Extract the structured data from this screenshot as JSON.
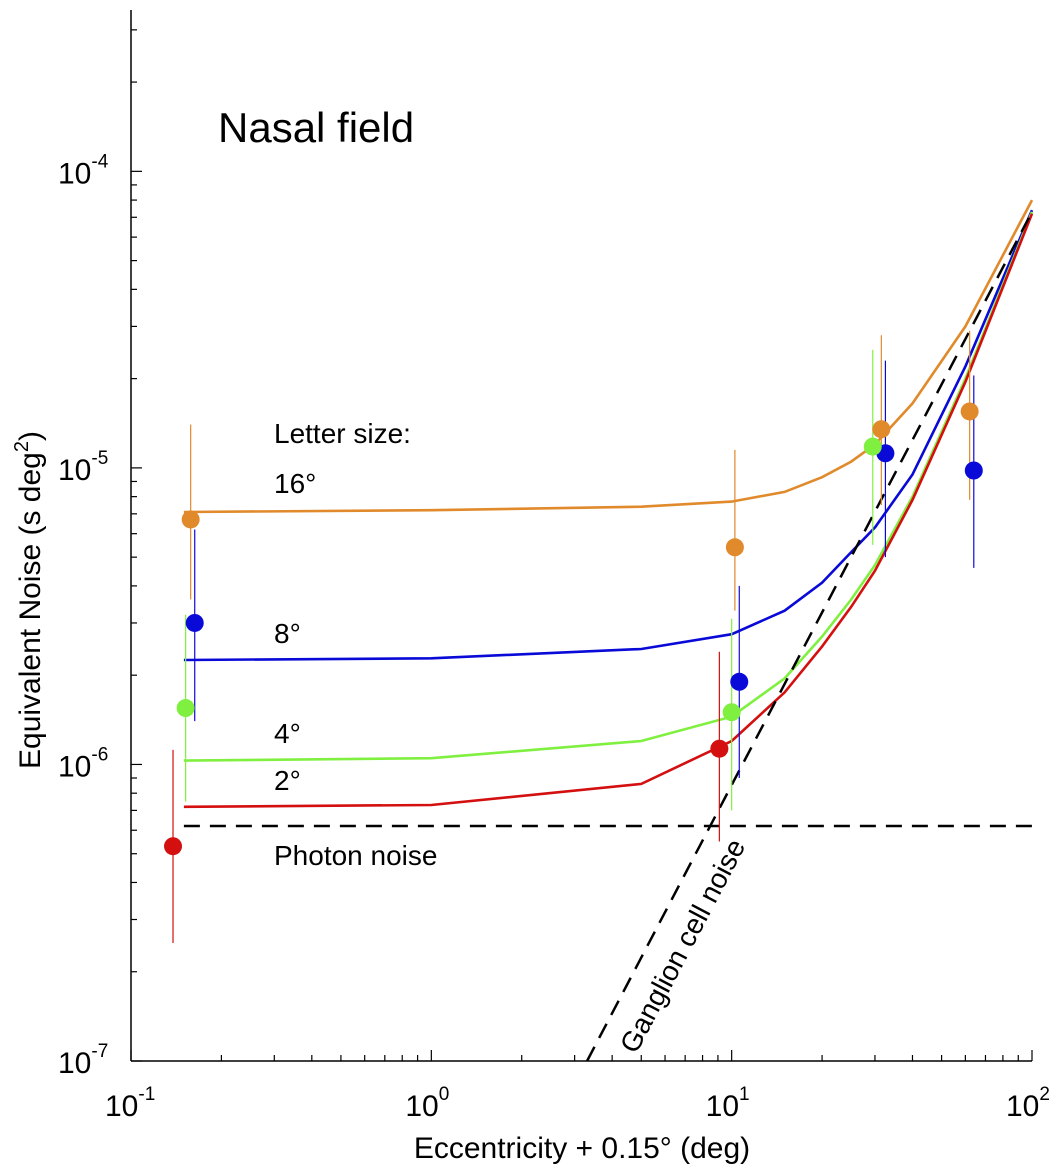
{
  "chart_data": {
    "type": "line",
    "title": "Nasal field",
    "xlabel": "Eccentricity + 0.15° (deg)",
    "ylabel_main": "Equivalent Noise (s deg",
    "ylabel_sup": "2",
    "ylabel_close": ")",
    "x_scale": "log",
    "y_scale": "log",
    "xlim": [
      0.1,
      100
    ],
    "ylim": [
      1e-07,
      0.00035
    ],
    "x_ticks": [
      {
        "value": 0.1,
        "base": "10",
        "exp": "-1"
      },
      {
        "value": 1,
        "base": "10",
        "exp": "0"
      },
      {
        "value": 10,
        "base": "10",
        "exp": "1"
      },
      {
        "value": 100,
        "base": "10",
        "exp": "2"
      }
    ],
    "y_ticks": [
      {
        "value": 1e-07,
        "base": "10",
        "exp": "-7"
      },
      {
        "value": 1e-06,
        "base": "10",
        "exp": "-6"
      },
      {
        "value": 1e-05,
        "base": "10",
        "exp": "-5"
      },
      {
        "value": 0.0001,
        "base": "10",
        "exp": "-4"
      }
    ],
    "grid": false,
    "legend_title": "Letter size:",
    "series": [
      {
        "name": "16°",
        "color": "#e08a2c",
        "curve": [
          [
            0.15,
            7.1e-06
          ],
          [
            1,
            7.2e-06
          ],
          [
            5,
            7.4e-06
          ],
          [
            10,
            7.7e-06
          ],
          [
            15,
            8.3e-06
          ],
          [
            20,
            9.3e-06
          ],
          [
            25,
            1.05e-05
          ],
          [
            30,
            1.2e-05
          ],
          [
            40,
            1.65e-05
          ],
          [
            60,
            3e-05
          ],
          [
            100,
            8e-05
          ]
        ],
        "points": [
          {
            "x": 0.158,
            "y": 6.7e-06,
            "lo": 3.6e-06,
            "hi": 1.4e-05
          },
          {
            "x": 10.25,
            "y": 5.4e-06,
            "lo": 3.3e-06,
            "hi": 1.15e-05
          },
          {
            "x": 31.5,
            "y": 1.35e-05,
            "lo": 7.5e-06,
            "hi": 2.8e-05
          },
          {
            "x": 62,
            "y": 1.55e-05,
            "lo": 7.8e-06,
            "hi": 2.9e-05
          }
        ]
      },
      {
        "name": "8°",
        "color": "#0a0ad8",
        "curve": [
          [
            0.15,
            2.25e-06
          ],
          [
            1,
            2.28e-06
          ],
          [
            5,
            2.45e-06
          ],
          [
            10,
            2.75e-06
          ],
          [
            15,
            3.3e-06
          ],
          [
            20,
            4.1e-06
          ],
          [
            25,
            5.2e-06
          ],
          [
            30,
            6.3e-06
          ],
          [
            40,
            9.5e-06
          ],
          [
            60,
            2.2e-05
          ],
          [
            100,
            7.4e-05
          ]
        ],
        "points": [
          {
            "x": 0.163,
            "y": 3e-06,
            "lo": 1.4e-06,
            "hi": 6.2e-06
          },
          {
            "x": 10.6,
            "y": 1.9e-06,
            "lo": 9e-07,
            "hi": 4e-06
          },
          {
            "x": 32.5,
            "y": 1.12e-05,
            "lo": 5e-06,
            "hi": 2.3e-05
          },
          {
            "x": 64,
            "y": 9.8e-06,
            "lo": 4.6e-06,
            "hi": 2.05e-05
          }
        ]
      },
      {
        "name": "4°",
        "color": "#80f040",
        "curve": [
          [
            0.15,
            1.03e-06
          ],
          [
            1,
            1.05e-06
          ],
          [
            5,
            1.2e-06
          ],
          [
            10,
            1.45e-06
          ],
          [
            15,
            1.95e-06
          ],
          [
            20,
            2.7e-06
          ],
          [
            25,
            3.6e-06
          ],
          [
            30,
            4.7e-06
          ],
          [
            40,
            8e-06
          ],
          [
            60,
            2e-05
          ],
          [
            100,
            7.3e-05
          ]
        ],
        "points": [
          {
            "x": 0.152,
            "y": 1.55e-06,
            "lo": 7.5e-07,
            "hi": 3.2e-06
          },
          {
            "x": 10,
            "y": 1.5e-06,
            "lo": 7e-07,
            "hi": 3.1e-06
          },
          {
            "x": 29.5,
            "y": 1.18e-05,
            "lo": 5.5e-06,
            "hi": 2.5e-05
          }
        ]
      },
      {
        "name": "2°",
        "color": "#d40f0f",
        "curve": [
          [
            0.15,
            7.2e-07
          ],
          [
            1,
            7.3e-07
          ],
          [
            5,
            8.6e-07
          ],
          [
            10,
            1.2e-06
          ],
          [
            15,
            1.75e-06
          ],
          [
            20,
            2.5e-06
          ],
          [
            25,
            3.4e-06
          ],
          [
            30,
            4.5e-06
          ],
          [
            40,
            7.8e-06
          ],
          [
            60,
            1.95e-05
          ],
          [
            100,
            7.2e-05
          ]
        ],
        "points": [
          {
            "x": 0.138,
            "y": 5.3e-07,
            "lo": 2.5e-07,
            "hi": 1.12e-06
          },
          {
            "x": 9.1,
            "y": 1.13e-06,
            "lo": 5.5e-07,
            "hi": 2.4e-06
          }
        ]
      }
    ],
    "reference_lines": [
      {
        "name": "Photon noise",
        "style": "dashed",
        "color": "#000000",
        "points": [
          [
            0.15,
            6.2e-07
          ],
          [
            100,
            6.2e-07
          ]
        ]
      },
      {
        "name": "Ganglion cell noise",
        "style": "dashed",
        "color": "#000000",
        "points": [
          [
            3.3,
            1e-07
          ],
          [
            100,
            7.3e-05
          ]
        ]
      }
    ]
  }
}
